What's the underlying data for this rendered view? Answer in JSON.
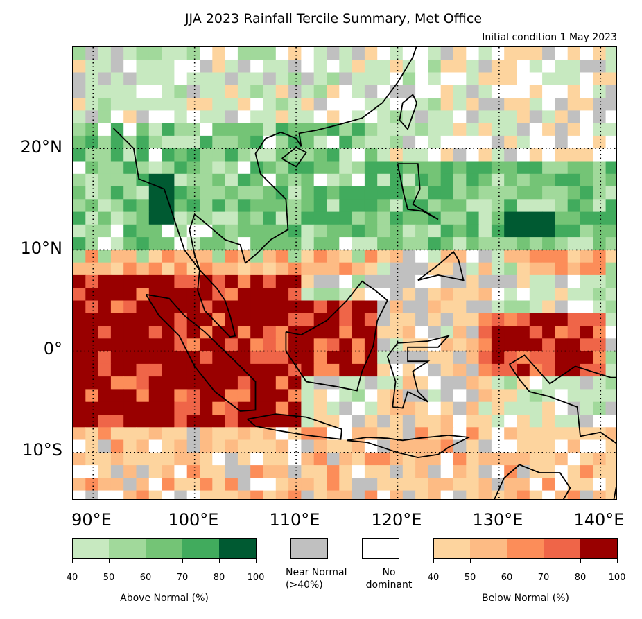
{
  "header": {
    "title": "JJA 2023 Rainfall Tercile Summary, Met Office",
    "subtitle": "Initial condition 1 May 2023"
  },
  "map": {
    "lat_labels": [
      "20°N",
      "10°N",
      "0°",
      "10°S"
    ],
    "lon_labels": [
      "90°E",
      "100°E",
      "110°E",
      "120°E",
      "130°E",
      "140°E"
    ]
  },
  "legend": {
    "above_normal": {
      "caption": "Above Normal (%)",
      "ticks": [
        "40",
        "50",
        "60",
        "70",
        "80",
        "100"
      ],
      "colors": [
        "#c7e9c0",
        "#a1d99b",
        "#74c476",
        "#41ab5d",
        "#005a32"
      ]
    },
    "near_normal": {
      "caption": "Near Normal\n(>40%)",
      "color": "#c0c0c0"
    },
    "no_dominant": {
      "caption": "No\ndominant",
      "color": "#ffffff"
    },
    "below_normal": {
      "caption": "Below Normal (%)",
      "ticks": [
        "40",
        "50",
        "60",
        "70",
        "80",
        "100"
      ],
      "colors": [
        "#fdd49e",
        "#fdbb84",
        "#fc8d59",
        "#ef6548",
        "#990000"
      ]
    }
  }
}
